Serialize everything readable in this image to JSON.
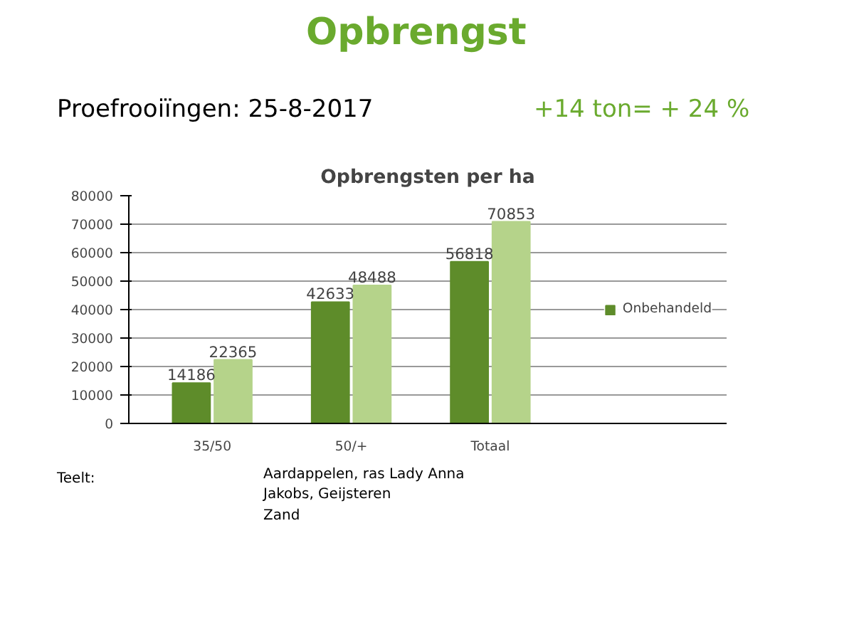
{
  "chart_data": {
    "type": "bar",
    "title": "Opbrengst",
    "subtitle": "Proefrooiïngen: 25-8-2017",
    "xlabel": "Opbrengsten per ha",
    "categories": [
      "35/50",
      "50/+",
      "Totaal"
    ],
    "series": [
      {
        "name": "Onbehandeld",
        "color": "#5e8c2a",
        "values": [
          14186,
          42633,
          56818
        ]
      },
      {
        "color": "#b5d38a",
        "values": [
          22365,
          48488,
          70853
        ]
      }
    ],
    "ylim": [
      0,
      80000
    ],
    "yticks": [
      0,
      10000,
      20000,
      30000,
      40000,
      50000,
      60000,
      70000,
      80000
    ],
    "grid": "y",
    "legend": "right",
    "data_labels": true,
    "annotations": [
      "+14 ton= + 24 %",
      "Teelt:",
      "Aardappelen, ras Lady Anna",
      "Jakobs, Geijsteren",
      "Zand"
    ]
  }
}
